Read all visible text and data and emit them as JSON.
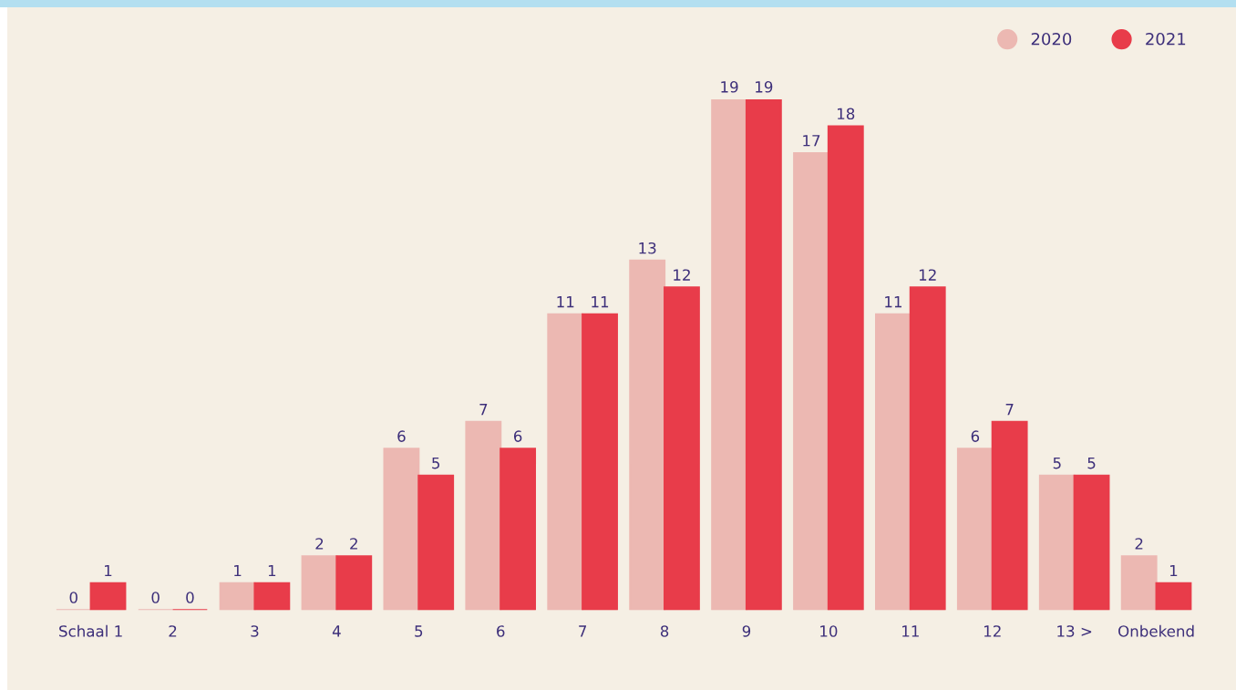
{
  "chart_data": {
    "type": "bar",
    "categories": [
      "Schaal 1",
      "2",
      "3",
      "4",
      "5",
      "6",
      "7",
      "8",
      "9",
      "10",
      "11",
      "12",
      "13 >",
      "Onbekend"
    ],
    "series": [
      {
        "name": "2020",
        "color": "#ecb8b2",
        "values": [
          0,
          0,
          1,
          2,
          6,
          7,
          11,
          13,
          19,
          17,
          11,
          6,
          5,
          2
        ]
      },
      {
        "name": "2021",
        "color": "#e83c4a",
        "values": [
          1,
          0,
          1,
          2,
          5,
          6,
          11,
          12,
          19,
          18,
          12,
          7,
          5,
          1
        ]
      }
    ],
    "data_labels": true,
    "legend": "top right",
    "grid": false
  }
}
